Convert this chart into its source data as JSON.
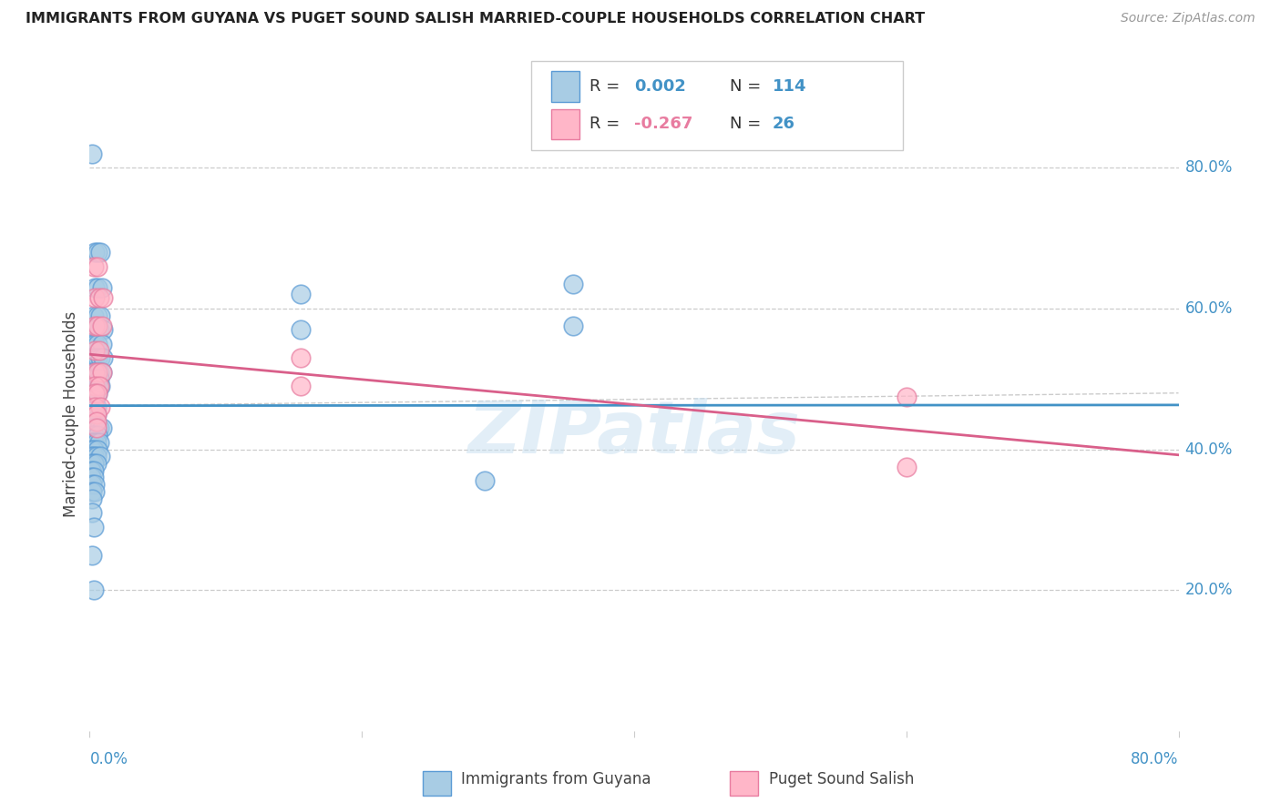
{
  "title": "IMMIGRANTS FROM GUYANA VS PUGET SOUND SALISH MARRIED-COUPLE HOUSEHOLDS CORRELATION CHART",
  "source": "Source: ZipAtlas.com",
  "ylabel": "Married-couple Households",
  "ytick_values": [
    0.2,
    0.4,
    0.6,
    0.8
  ],
  "xlim": [
    0.0,
    0.8
  ],
  "ylim": [
    0.0,
    0.9
  ],
  "watermark": "ZIPatlas",
  "color_blue": "#a8cce4",
  "color_pink": "#ffb6c8",
  "edge_blue": "#5b9bd5",
  "edge_pink": "#e87ca0",
  "line_blue": "#4292c6",
  "line_pink": "#d95f8a",
  "title_color": "#222222",
  "source_color": "#999999",
  "axis_label_color": "#4292c6",
  "grid_color": "#cccccc",
  "blue_scatter": [
    [
      0.002,
      0.82
    ],
    [
      0.004,
      0.68
    ],
    [
      0.006,
      0.68
    ],
    [
      0.008,
      0.68
    ],
    [
      0.004,
      0.63
    ],
    [
      0.006,
      0.63
    ],
    [
      0.009,
      0.63
    ],
    [
      0.003,
      0.59
    ],
    [
      0.006,
      0.59
    ],
    [
      0.008,
      0.59
    ],
    [
      0.002,
      0.57
    ],
    [
      0.004,
      0.57
    ],
    [
      0.007,
      0.57
    ],
    [
      0.01,
      0.57
    ],
    [
      0.002,
      0.55
    ],
    [
      0.004,
      0.55
    ],
    [
      0.006,
      0.55
    ],
    [
      0.009,
      0.55
    ],
    [
      0.002,
      0.53
    ],
    [
      0.004,
      0.53
    ],
    [
      0.006,
      0.53
    ],
    [
      0.008,
      0.53
    ],
    [
      0.01,
      0.53
    ],
    [
      0.002,
      0.51
    ],
    [
      0.003,
      0.51
    ],
    [
      0.005,
      0.51
    ],
    [
      0.007,
      0.51
    ],
    [
      0.009,
      0.51
    ],
    [
      0.001,
      0.5
    ],
    [
      0.003,
      0.5
    ],
    [
      0.005,
      0.5
    ],
    [
      0.007,
      0.5
    ],
    [
      0.001,
      0.49
    ],
    [
      0.002,
      0.49
    ],
    [
      0.004,
      0.49
    ],
    [
      0.006,
      0.49
    ],
    [
      0.008,
      0.49
    ],
    [
      0.001,
      0.48
    ],
    [
      0.002,
      0.48
    ],
    [
      0.004,
      0.48
    ],
    [
      0.006,
      0.48
    ],
    [
      0.001,
      0.47
    ],
    [
      0.002,
      0.47
    ],
    [
      0.004,
      0.47
    ],
    [
      0.001,
      0.46
    ],
    [
      0.003,
      0.46
    ],
    [
      0.005,
      0.46
    ],
    [
      0.001,
      0.455
    ],
    [
      0.002,
      0.455
    ],
    [
      0.001,
      0.45
    ],
    [
      0.003,
      0.45
    ],
    [
      0.005,
      0.45
    ],
    [
      0.001,
      0.44
    ],
    [
      0.002,
      0.44
    ],
    [
      0.001,
      0.43
    ],
    [
      0.003,
      0.43
    ],
    [
      0.005,
      0.43
    ],
    [
      0.007,
      0.43
    ],
    [
      0.009,
      0.43
    ],
    [
      0.001,
      0.42
    ],
    [
      0.003,
      0.42
    ],
    [
      0.006,
      0.42
    ],
    [
      0.001,
      0.41
    ],
    [
      0.003,
      0.41
    ],
    [
      0.005,
      0.41
    ],
    [
      0.007,
      0.41
    ],
    [
      0.001,
      0.4
    ],
    [
      0.003,
      0.4
    ],
    [
      0.006,
      0.4
    ],
    [
      0.001,
      0.39
    ],
    [
      0.003,
      0.39
    ],
    [
      0.005,
      0.39
    ],
    [
      0.008,
      0.39
    ],
    [
      0.001,
      0.38
    ],
    [
      0.003,
      0.38
    ],
    [
      0.005,
      0.38
    ],
    [
      0.001,
      0.37
    ],
    [
      0.003,
      0.37
    ],
    [
      0.001,
      0.36
    ],
    [
      0.003,
      0.36
    ],
    [
      0.002,
      0.35
    ],
    [
      0.004,
      0.35
    ],
    [
      0.002,
      0.34
    ],
    [
      0.004,
      0.34
    ],
    [
      0.002,
      0.33
    ],
    [
      0.002,
      0.31
    ],
    [
      0.003,
      0.29
    ],
    [
      0.002,
      0.25
    ],
    [
      0.003,
      0.2
    ],
    [
      0.155,
      0.62
    ],
    [
      0.155,
      0.57
    ],
    [
      0.29,
      0.355
    ],
    [
      0.355,
      0.635
    ],
    [
      0.355,
      0.575
    ]
  ],
  "pink_scatter": [
    [
      0.003,
      0.66
    ],
    [
      0.006,
      0.66
    ],
    [
      0.004,
      0.615
    ],
    [
      0.007,
      0.615
    ],
    [
      0.01,
      0.615
    ],
    [
      0.004,
      0.575
    ],
    [
      0.006,
      0.575
    ],
    [
      0.009,
      0.575
    ],
    [
      0.004,
      0.54
    ],
    [
      0.007,
      0.54
    ],
    [
      0.004,
      0.51
    ],
    [
      0.006,
      0.51
    ],
    [
      0.009,
      0.51
    ],
    [
      0.004,
      0.49
    ],
    [
      0.007,
      0.49
    ],
    [
      0.004,
      0.48
    ],
    [
      0.006,
      0.48
    ],
    [
      0.004,
      0.46
    ],
    [
      0.008,
      0.46
    ],
    [
      0.005,
      0.45
    ],
    [
      0.005,
      0.44
    ],
    [
      0.005,
      0.43
    ],
    [
      0.6,
      0.475
    ],
    [
      0.6,
      0.375
    ],
    [
      0.155,
      0.53
    ],
    [
      0.155,
      0.49
    ]
  ],
  "blue_line_x": [
    0.0,
    0.8
  ],
  "blue_line_y": [
    0.462,
    0.463
  ],
  "pink_line_x": [
    0.0,
    0.8
  ],
  "pink_line_y": [
    0.535,
    0.392
  ],
  "dashed_line_x": [
    0.0,
    0.8
  ],
  "dashed_line_y": [
    0.462,
    0.48
  ]
}
